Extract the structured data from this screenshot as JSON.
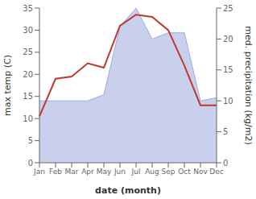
{
  "chart_data": {
    "type": "line",
    "xlabel": "date (month)",
    "ylabel": "max temp (C)",
    "y2label": "med. precipitation (kg/m2)",
    "categories": [
      "Jan",
      "Feb",
      "Mar",
      "Apr",
      "May",
      "Jun",
      "Jul",
      "Aug",
      "Sep",
      "Oct",
      "Nov",
      "Dec"
    ],
    "series": [
      {
        "type": "area",
        "axis": "y2",
        "color": "#9daae0",
        "values": [
          10.0,
          10.0,
          10.0,
          10.0,
          11.0,
          22.0,
          25.0,
          20.0,
          21.0,
          21.0,
          10.0,
          10.5
        ]
      },
      {
        "type": "line",
        "color": "#c0392b",
        "values": [
          10.5,
          19.0,
          19.5,
          22.5,
          21.5,
          31.0,
          33.5,
          33.0,
          30.0,
          22.0,
          13.0,
          13.0
        ]
      }
    ],
    "ylim": [
      0,
      35
    ],
    "yticks": [
      0,
      5,
      10,
      15,
      20,
      25,
      30,
      35
    ],
    "y2lim": [
      0,
      25
    ],
    "y2ticks": [
      0,
      5,
      10,
      15,
      20,
      25
    ],
    "grid": false
  }
}
